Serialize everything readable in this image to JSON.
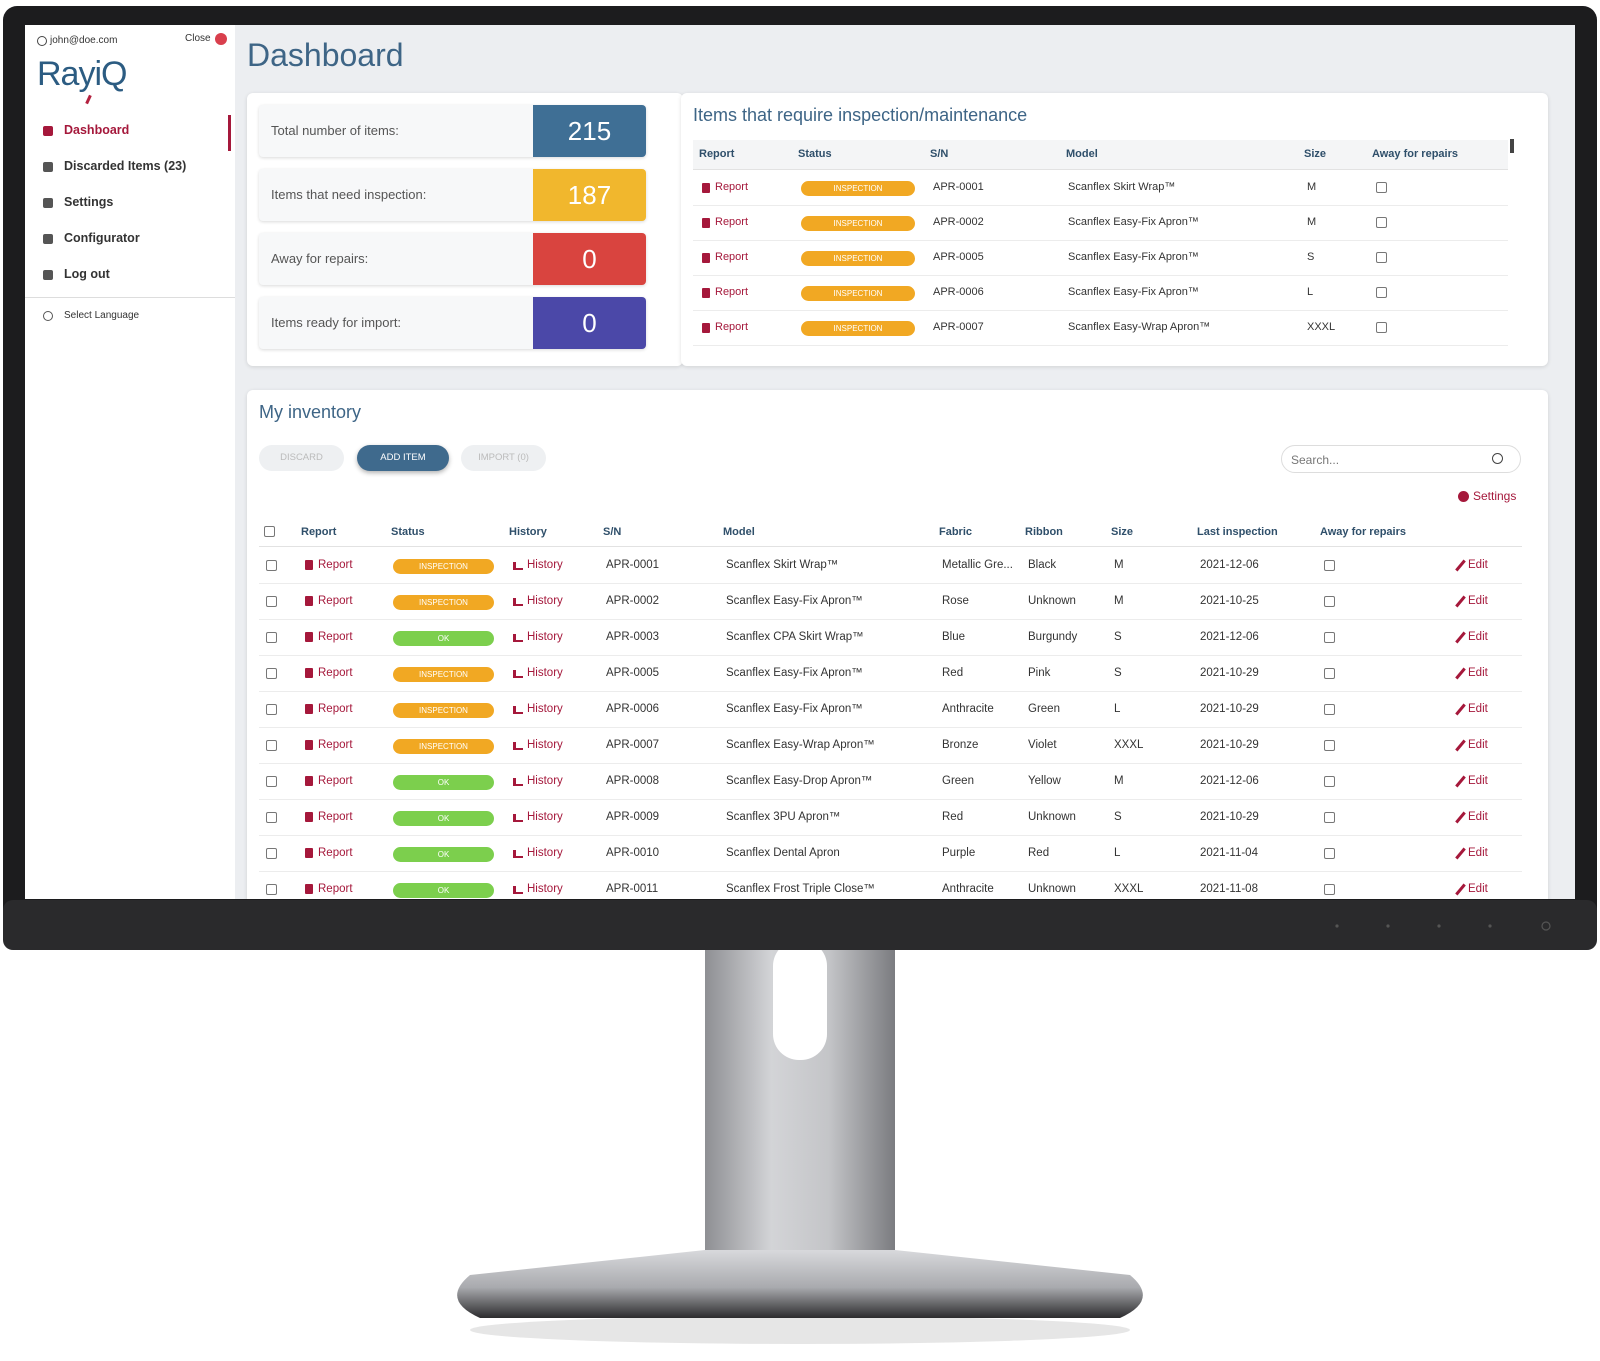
{
  "sidebar": {
    "user": "john@doe.com",
    "close": "Close",
    "logo": "RayiQ",
    "nav": [
      "Dashboard",
      "Discarded Items (23)",
      "Settings",
      "Configurator",
      "Log out"
    ],
    "language": "Select Language"
  },
  "header": {
    "title": "Dashboard"
  },
  "stats": [
    {
      "label": "Total number of items:",
      "value": "215",
      "color": "#3f6f95"
    },
    {
      "label": "Items that need inspection:",
      "value": "187",
      "color": "#f1b72d"
    },
    {
      "label": "Away for repairs:",
      "value": "0",
      "color": "#d9443f"
    },
    {
      "label": "Items ready for import:",
      "value": "0",
      "color": "#4b48a8"
    }
  ],
  "inspection_panel": {
    "title": "Items that require inspection/maintenance",
    "columns": [
      "Report",
      "Status",
      "S/N",
      "Model",
      "Size",
      "Away for repairs"
    ],
    "rows": [
      {
        "report": "Report",
        "status": "INSPECTION",
        "status_color": "#f1a823",
        "sn": "APR-0001",
        "model": "Scanflex Skirt Wrap™",
        "size": "M"
      },
      {
        "report": "Report",
        "status": "INSPECTION",
        "status_color": "#f1a823",
        "sn": "APR-0002",
        "model": "Scanflex Easy-Fix Apron™",
        "size": "M"
      },
      {
        "report": "Report",
        "status": "INSPECTION",
        "status_color": "#f1a823",
        "sn": "APR-0005",
        "model": "Scanflex Easy-Fix Apron™",
        "size": "S"
      },
      {
        "report": "Report",
        "status": "INSPECTION",
        "status_color": "#f1a823",
        "sn": "APR-0006",
        "model": "Scanflex Easy-Fix Apron™",
        "size": "L"
      },
      {
        "report": "Report",
        "status": "INSPECTION",
        "status_color": "#f1a823",
        "sn": "APR-0007",
        "model": "Scanflex Easy-Wrap Apron™",
        "size": "XXXL"
      }
    ]
  },
  "inventory": {
    "title": "My inventory",
    "buttons": [
      "DISCARD",
      "ADD ITEM",
      "IMPORT (0)"
    ],
    "search_placeholder": "Search...",
    "settings": "Settings",
    "columns": [
      "Report",
      "Status",
      "History",
      "S/N",
      "Model",
      "Fabric",
      "Ribbon",
      "Size",
      "Last inspection",
      "Away for repairs"
    ],
    "rows": [
      {
        "report": "Report",
        "status": "INSPECTION",
        "status_color": "#f1a823",
        "history": "History",
        "sn": "APR-0001",
        "model": "Scanflex Skirt Wrap™",
        "fabric": "Metallic Gre...",
        "ribbon": "Black",
        "size": "M",
        "last_inspection": "2021-12-06",
        "edit": "Edit"
      },
      {
        "report": "Report",
        "status": "INSPECTION",
        "status_color": "#f1a823",
        "history": "History",
        "sn": "APR-0002",
        "model": "Scanflex Easy-Fix Apron™",
        "fabric": "Rose",
        "ribbon": "Unknown",
        "size": "M",
        "last_inspection": "2021-10-25",
        "edit": "Edit"
      },
      {
        "report": "Report",
        "status": "OK",
        "status_color": "#7ccf4d",
        "history": "History",
        "sn": "APR-0003",
        "model": "Scanflex CPA Skirt Wrap™",
        "fabric": "Blue",
        "ribbon": "Burgundy",
        "size": "S",
        "last_inspection": "2021-12-06",
        "edit": "Edit"
      },
      {
        "report": "Report",
        "status": "INSPECTION",
        "status_color": "#f1a823",
        "history": "History",
        "sn": "APR-0005",
        "model": "Scanflex Easy-Fix Apron™",
        "fabric": "Red",
        "ribbon": "Pink",
        "size": "S",
        "last_inspection": "2021-10-29",
        "edit": "Edit"
      },
      {
        "report": "Report",
        "status": "INSPECTION",
        "status_color": "#f1a823",
        "history": "History",
        "sn": "APR-0006",
        "model": "Scanflex Easy-Fix Apron™",
        "fabric": "Anthracite",
        "ribbon": "Green",
        "size": "L",
        "last_inspection": "2021-10-29",
        "edit": "Edit"
      },
      {
        "report": "Report",
        "status": "INSPECTION",
        "status_color": "#f1a823",
        "history": "History",
        "sn": "APR-0007",
        "model": "Scanflex Easy-Wrap Apron™",
        "fabric": "Bronze",
        "ribbon": "Violet",
        "size": "XXXL",
        "last_inspection": "2021-10-29",
        "edit": "Edit"
      },
      {
        "report": "Report",
        "status": "OK",
        "status_color": "#7ccf4d",
        "history": "History",
        "sn": "APR-0008",
        "model": "Scanflex Easy-Drop Apron™",
        "fabric": "Green",
        "ribbon": "Yellow",
        "size": "M",
        "last_inspection": "2021-12-06",
        "edit": "Edit"
      },
      {
        "report": "Report",
        "status": "OK",
        "status_color": "#7ccf4d",
        "history": "History",
        "sn": "APR-0009",
        "model": "Scanflex 3PU Apron™",
        "fabric": "Red",
        "ribbon": "Unknown",
        "size": "S",
        "last_inspection": "2021-10-29",
        "edit": "Edit"
      },
      {
        "report": "Report",
        "status": "OK",
        "status_color": "#7ccf4d",
        "history": "History",
        "sn": "APR-0010",
        "model": "Scanflex Dental Apron",
        "fabric": "Purple",
        "ribbon": "Red",
        "size": "L",
        "last_inspection": "2021-11-04",
        "edit": "Edit"
      },
      {
        "report": "Report",
        "status": "OK",
        "status_color": "#7ccf4d",
        "history": "History",
        "sn": "APR-0011",
        "model": "Scanflex Frost Triple Close™",
        "fabric": "Anthracite",
        "ribbon": "Unknown",
        "size": "XXXL",
        "last_inspection": "2021-11-08",
        "edit": "Edit"
      }
    ]
  }
}
